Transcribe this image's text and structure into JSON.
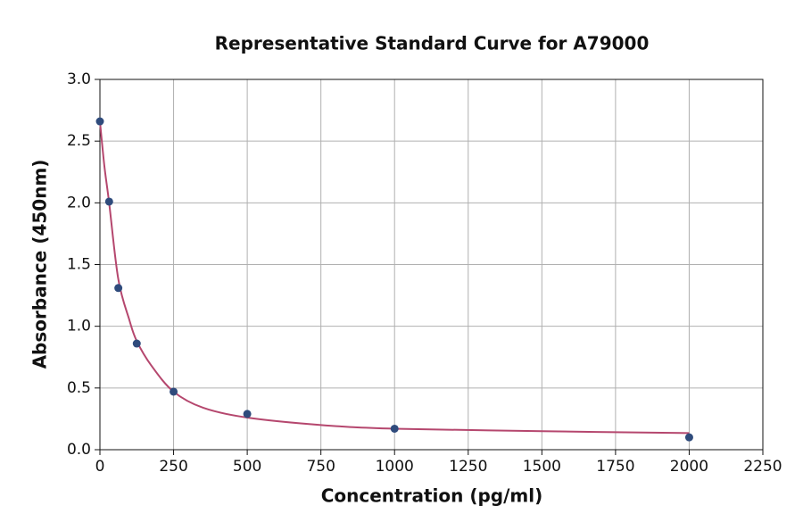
{
  "chart_data": {
    "type": "scatter",
    "title": "Representative Standard Curve for A79000",
    "x_label": "Concentration (pg/ml)",
    "y_label": "Absorbance (450nm)",
    "points": {
      "color": "#2f4b7c",
      "x": [
        0,
        31.25,
        62.5,
        125,
        250,
        500,
        1000,
        2000
      ],
      "y": [
        2.66,
        2.01,
        1.31,
        0.86,
        0.47,
        0.29,
        0.17,
        0.1
      ]
    },
    "curve": {
      "color": "#b5476e",
      "x": [
        0,
        15,
        31.25,
        62.5,
        100,
        125,
        175,
        250,
        350,
        500,
        750,
        1000,
        1500,
        2000
      ],
      "y": [
        2.66,
        2.3,
        2.0,
        1.38,
        1.05,
        0.88,
        0.68,
        0.47,
        0.34,
        0.26,
        0.2,
        0.17,
        0.15,
        0.135
      ]
    },
    "xlim": [
      0,
      2250
    ],
    "xticks": [
      0,
      250,
      500,
      750,
      1000,
      1250,
      1500,
      1750,
      2000,
      2250
    ],
    "ylim": [
      0,
      3
    ],
    "yticks": [
      {
        "value": 0,
        "label": "0.0"
      },
      0.5,
      {
        "value": 1,
        "label": "1.0"
      },
      1.5,
      {
        "value": 2,
        "label": "2.0"
      },
      2.5,
      {
        "value": 3,
        "label": "3.0"
      }
    ],
    "grid": true
  }
}
